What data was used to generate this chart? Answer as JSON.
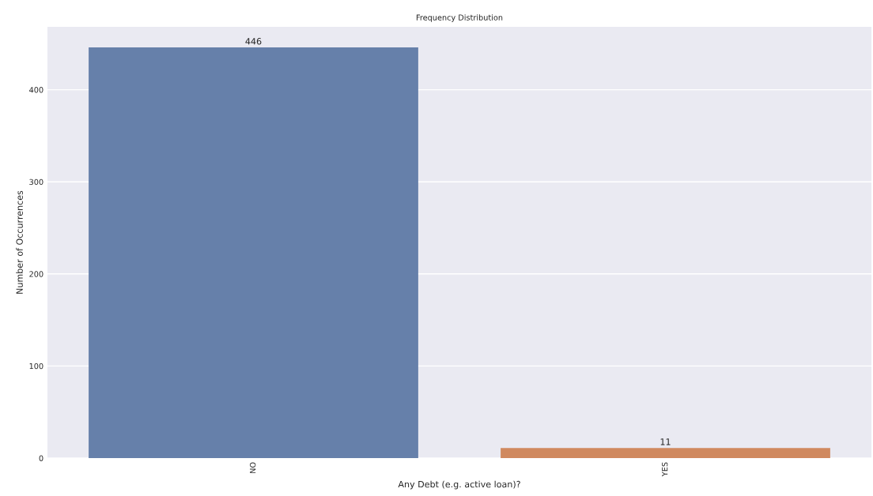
{
  "chart_data": {
    "type": "bar",
    "title": "Frequency Distribution",
    "xlabel": "Any Debt (e.g. active loan)?",
    "ylabel": "Number of Occurrences",
    "categories": [
      "NO",
      "YES"
    ],
    "values": [
      446,
      11
    ],
    "colors": [
      "#6680aa",
      "#d0895f"
    ],
    "ylim": [
      0,
      468.3
    ],
    "yticks": [
      0,
      100,
      200,
      300,
      400
    ],
    "grid": "y",
    "data_labels": true
  }
}
